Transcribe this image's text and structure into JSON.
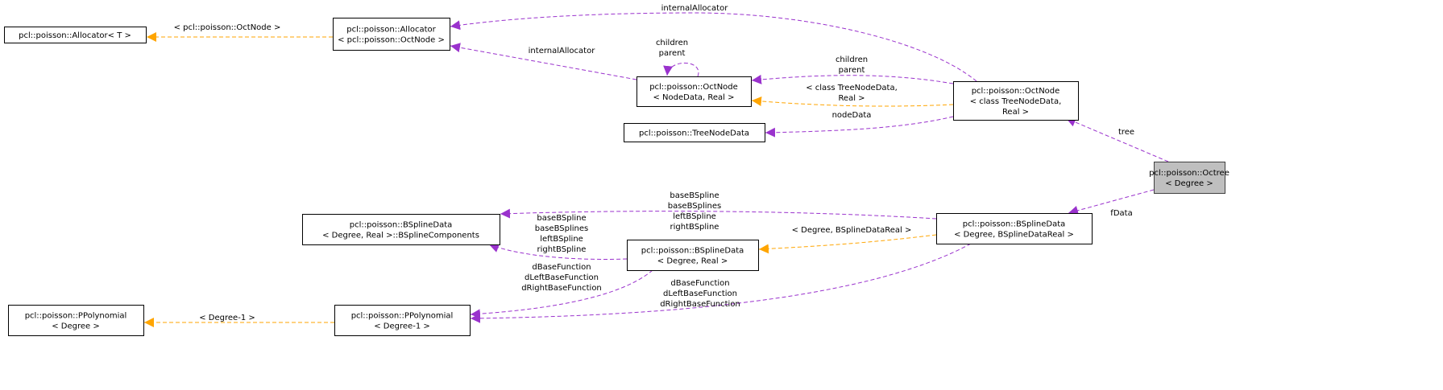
{
  "colors": {
    "usage": "#9a32cd",
    "template": "#ffa500",
    "focus_fill": "#bfbfbf"
  },
  "nodes": {
    "alloc_t": {
      "lines": [
        "pcl::poisson::Allocator< T >"
      ]
    },
    "alloc_oct": {
      "lines": [
        "pcl::poisson::Allocator",
        "< pcl::poisson::OctNode >"
      ]
    },
    "octnode_nd": {
      "lines": [
        "pcl::poisson::OctNode",
        "< NodeData, Real >"
      ]
    },
    "treenodedata": {
      "lines": [
        "pcl::poisson::TreeNodeData"
      ]
    },
    "octnode_class": {
      "lines": [
        "pcl::poisson::OctNode",
        "< class TreeNodeData,",
        "Real >"
      ]
    },
    "octree": {
      "lines": [
        "pcl::poisson::Octree",
        "< Degree >"
      ],
      "focus": true
    },
    "bsplinecomp": {
      "lines": [
        "pcl::poisson::BSplineData",
        "< Degree, Real >::BSplineComponents"
      ]
    },
    "bsplinedata_real": {
      "lines": [
        "pcl::poisson::BSplineData",
        "< Degree, Real >"
      ]
    },
    "bsplinedata_bsdr": {
      "lines": [
        "pcl::poisson::BSplineData",
        "< Degree, BSplineDataReal >"
      ]
    },
    "ppoly_deg": {
      "lines": [
        "pcl::poisson::PPolynomial",
        "< Degree >"
      ]
    },
    "ppoly_deg1": {
      "lines": [
        "pcl::poisson::PPolynomial",
        "< Degree-1 >"
      ]
    }
  },
  "edges": [
    {
      "id": "e1",
      "from": "alloc_oct",
      "to": "alloc_t",
      "kind": "template",
      "label": [
        "< pcl::poisson::OctNode >"
      ]
    },
    {
      "id": "e2",
      "from": "octnode_class",
      "to": "alloc_oct",
      "kind": "usage",
      "label": [
        "internalAllocator"
      ]
    },
    {
      "id": "e3",
      "from": "octnode_nd",
      "to": "alloc_oct",
      "kind": "usage",
      "label": [
        "internalAllocator"
      ]
    },
    {
      "id": "e4",
      "from": "octnode_nd",
      "to": "octnode_nd",
      "kind": "usage",
      "label": [
        "children",
        "parent"
      ]
    },
    {
      "id": "e5",
      "from": "octnode_class",
      "to": "octnode_nd",
      "kind": "usage",
      "label": [
        "children",
        "parent"
      ]
    },
    {
      "id": "e6",
      "from": "octnode_class",
      "to": "octnode_nd",
      "kind": "template",
      "label": [
        "< class TreeNodeData,",
        "Real >"
      ]
    },
    {
      "id": "e7",
      "from": "octnode_class",
      "to": "treenodedata",
      "kind": "usage",
      "label": [
        "nodeData"
      ]
    },
    {
      "id": "e8",
      "from": "octree",
      "to": "octnode_class",
      "kind": "usage",
      "label": [
        "tree"
      ]
    },
    {
      "id": "e9",
      "from": "octree",
      "to": "bsplinedata_bsdr",
      "kind": "usage",
      "label": [
        "fData"
      ]
    },
    {
      "id": "e10",
      "from": "bsplinedata_bsdr",
      "to": "bsplinecomp",
      "kind": "usage",
      "label": [
        "baseBSpline",
        "baseBSplines",
        "leftBSpline",
        "rightBSpline"
      ]
    },
    {
      "id": "e11",
      "from": "bsplinedata_bsdr",
      "to": "bsplinedata_real",
      "kind": "template",
      "label": [
        "< Degree, BSplineDataReal >"
      ]
    },
    {
      "id": "e12",
      "from": "bsplinedata_real",
      "to": "bsplinecomp",
      "kind": "usage",
      "label": [
        "baseBSpline",
        "baseBSplines",
        "leftBSpline",
        "rightBSpline"
      ]
    },
    {
      "id": "e13",
      "from": "bsplinedata_real",
      "to": "ppoly_deg1",
      "kind": "usage",
      "label": [
        "dBaseFunction",
        "dLeftBaseFunction",
        "dRightBaseFunction"
      ]
    },
    {
      "id": "e14",
      "from": "bsplinedata_bsdr",
      "to": "ppoly_deg1",
      "kind": "usage",
      "label": [
        "dBaseFunction",
        "dLeftBaseFunction",
        "dRightBaseFunction"
      ]
    },
    {
      "id": "e15",
      "from": "ppoly_deg1",
      "to": "ppoly_deg",
      "kind": "template",
      "label": [
        "< Degree-1 >"
      ]
    }
  ]
}
